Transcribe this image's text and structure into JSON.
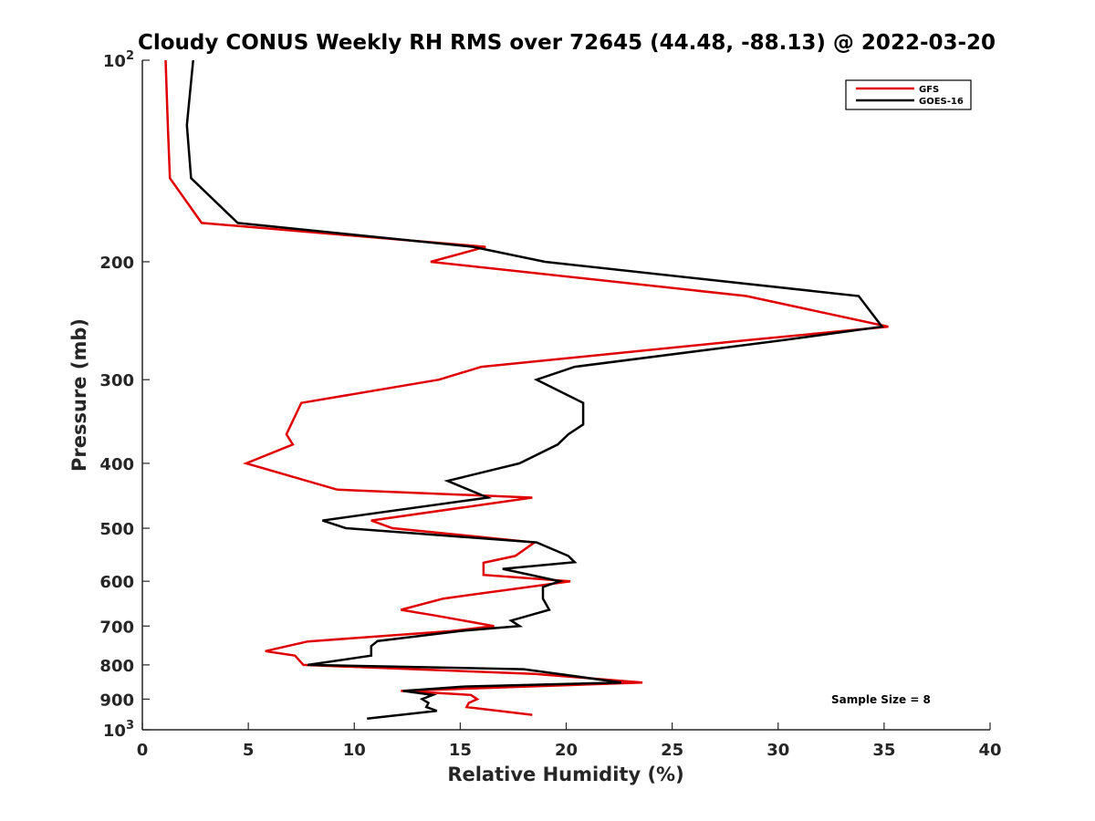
{
  "chart_data": {
    "type": "line",
    "title": "Cloudy CONUS Weekly RH RMS over 72645 (44.48, -88.13) @ 2022-03-20",
    "xlabel": "Relative Humidity (%)",
    "ylabel": "Pressure (mb)",
    "xlim": [
      0,
      40
    ],
    "ylim": [
      100,
      1000
    ],
    "y_scale": "log",
    "y_reversed": true,
    "grid": false,
    "legend_position": "top-right",
    "x_ticks": [
      {
        "value": 0,
        "label": "0"
      },
      {
        "value": 5,
        "label": "5"
      },
      {
        "value": 10,
        "label": "10"
      },
      {
        "value": 15,
        "label": "15"
      },
      {
        "value": 20,
        "label": "20"
      },
      {
        "value": 25,
        "label": "25"
      },
      {
        "value": 30,
        "label": "30"
      },
      {
        "value": 35,
        "label": "35"
      },
      {
        "value": 40,
        "label": "40"
      }
    ],
    "y_ticks": [
      {
        "value": 100,
        "base": "10",
        "exp": "2"
      },
      {
        "value": 200,
        "label": "200"
      },
      {
        "value": 300,
        "label": "300"
      },
      {
        "value": 400,
        "label": "400"
      },
      {
        "value": 500,
        "label": "500"
      },
      {
        "value": 600,
        "label": "600"
      },
      {
        "value": 700,
        "label": "700"
      },
      {
        "value": 800,
        "label": "800"
      },
      {
        "value": 900,
        "label": "900"
      },
      {
        "value": 1000,
        "base": "10",
        "exp": "3"
      }
    ],
    "annotation": "Sample Size = 8",
    "series": [
      {
        "name": "GFS",
        "color": "#e00000",
        "points": [
          [
            1.1,
            100
          ],
          [
            1.2,
            125
          ],
          [
            1.3,
            150
          ],
          [
            2.8,
            175
          ],
          [
            16.2,
            190
          ],
          [
            13.6,
            200
          ],
          [
            28.5,
            225
          ],
          [
            35.2,
            250
          ],
          [
            28.5,
            262
          ],
          [
            16,
            287
          ],
          [
            14,
            300
          ],
          [
            7.5,
            325
          ],
          [
            6.8,
            362
          ],
          [
            7.1,
            375
          ],
          [
            4.9,
            400
          ],
          [
            9.2,
            438
          ],
          [
            18.4,
            450
          ],
          [
            10.8,
            487
          ],
          [
            11.8,
            500
          ],
          [
            18.5,
            525
          ],
          [
            17.6,
            550
          ],
          [
            16.1,
            563
          ],
          [
            16.1,
            587
          ],
          [
            20.2,
            600
          ],
          [
            14.2,
            637
          ],
          [
            12.2,
            662
          ],
          [
            13.8,
            675
          ],
          [
            16.6,
            700
          ],
          [
            14.6,
            712
          ],
          [
            7.8,
            738
          ],
          [
            5.8,
            763
          ],
          [
            7.2,
            775
          ],
          [
            7.6,
            800
          ],
          [
            18.5,
            825
          ],
          [
            23.6,
            850
          ],
          [
            12.2,
            875
          ],
          [
            15.5,
            887
          ],
          [
            15.8,
            900
          ],
          [
            15.4,
            912
          ],
          [
            15.3,
            925
          ],
          [
            18.4,
            950
          ]
        ]
      },
      {
        "name": "GOES-16",
        "color": "#000000",
        "points": [
          [
            2.4,
            100
          ],
          [
            2.1,
            125
          ],
          [
            2.3,
            150
          ],
          [
            4.5,
            175
          ],
          [
            15.6,
            190
          ],
          [
            19,
            200
          ],
          [
            33.8,
            225
          ],
          [
            34.9,
            250
          ],
          [
            30.2,
            262
          ],
          [
            20.4,
            287
          ],
          [
            18.6,
            300
          ],
          [
            20.8,
            325
          ],
          [
            20.8,
            350
          ],
          [
            20.1,
            362
          ],
          [
            19.6,
            375
          ],
          [
            17.8,
            400
          ],
          [
            14.4,
            425
          ],
          [
            16.3,
            450
          ],
          [
            8.5,
            487
          ],
          [
            9.6,
            500
          ],
          [
            18.6,
            525
          ],
          [
            20.1,
            550
          ],
          [
            20.4,
            562
          ],
          [
            17,
            575
          ],
          [
            19.7,
            600
          ],
          [
            18.9,
            612
          ],
          [
            18.9,
            637
          ],
          [
            19.2,
            662
          ],
          [
            17.4,
            687
          ],
          [
            17.8,
            700
          ],
          [
            15,
            712
          ],
          [
            11.1,
            737
          ],
          [
            10.8,
            750
          ],
          [
            10.8,
            775
          ],
          [
            7.8,
            800
          ],
          [
            18,
            812
          ],
          [
            22.6,
            850
          ],
          [
            15.1,
            862
          ],
          [
            12.3,
            875
          ],
          [
            13.7,
            887
          ],
          [
            13.2,
            900
          ],
          [
            13.5,
            912
          ],
          [
            13.4,
            925
          ],
          [
            13.9,
            937
          ],
          [
            10.6,
            962
          ]
        ]
      }
    ]
  }
}
